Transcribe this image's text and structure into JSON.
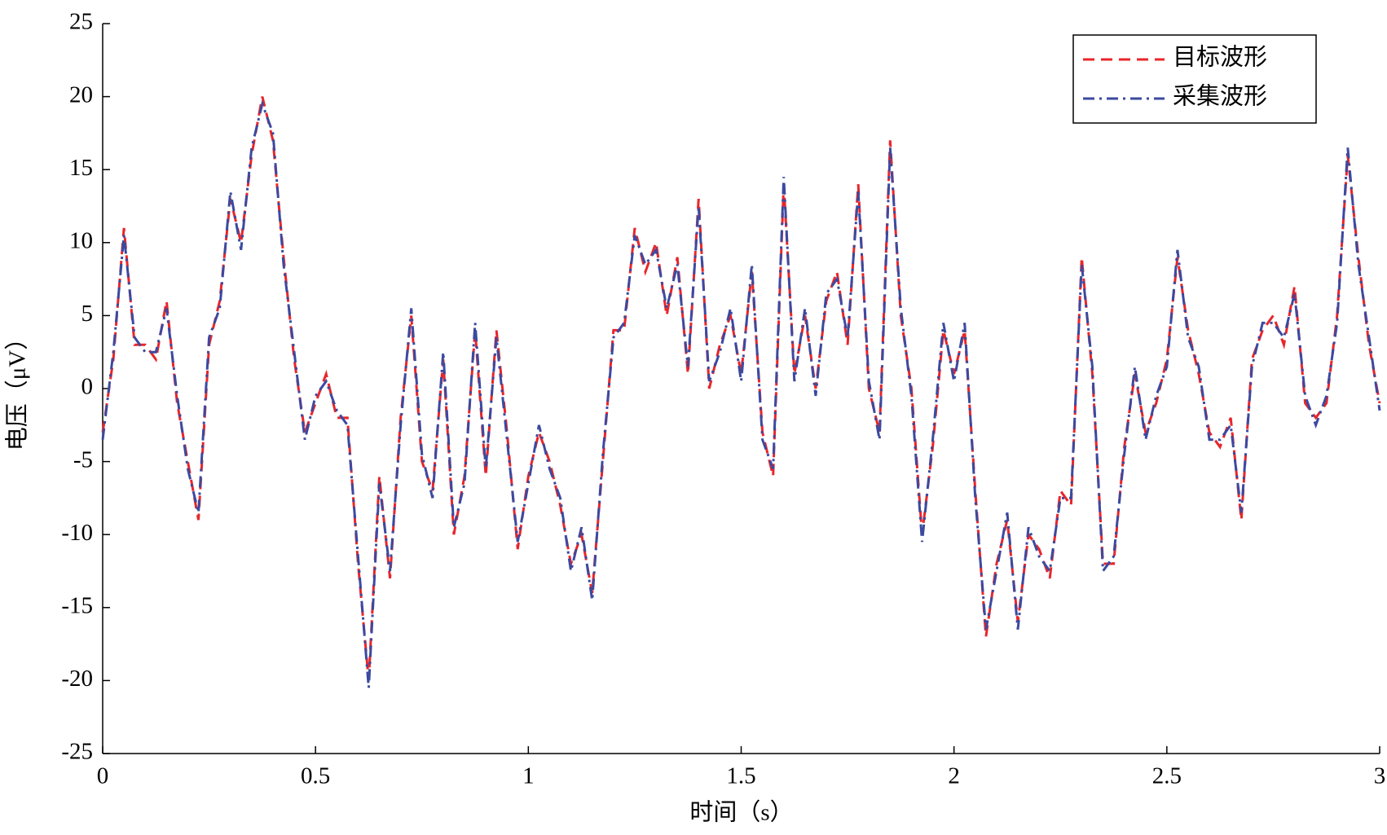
{
  "chart_data": {
    "type": "line",
    "xlabel": "时间（s）",
    "ylabel": "电压（μV）",
    "x": [
      0,
      0.025,
      0.05,
      0.075,
      0.1,
      0.125,
      0.15,
      0.175,
      0.2,
      0.225,
      0.25,
      0.275,
      0.3,
      0.325,
      0.35,
      0.375,
      0.4,
      0.425,
      0.45,
      0.475,
      0.5,
      0.525,
      0.55,
      0.575,
      0.6,
      0.625,
      0.65,
      0.675,
      0.7,
      0.725,
      0.75,
      0.775,
      0.8,
      0.825,
      0.85,
      0.875,
      0.9,
      0.925,
      0.95,
      0.975,
      1,
      1.025,
      1.05,
      1.075,
      1.1,
      1.125,
      1.15,
      1.175,
      1.2,
      1.225,
      1.25,
      1.275,
      1.3,
      1.325,
      1.35,
      1.375,
      1.4,
      1.425,
      1.45,
      1.475,
      1.5,
      1.525,
      1.55,
      1.575,
      1.6,
      1.625,
      1.65,
      1.675,
      1.7,
      1.725,
      1.75,
      1.775,
      1.8,
      1.825,
      1.85,
      1.875,
      1.9,
      1.925,
      1.95,
      1.975,
      2,
      2.025,
      2.05,
      2.075,
      2.1,
      2.125,
      2.15,
      2.175,
      2.2,
      2.225,
      2.25,
      2.275,
      2.3,
      2.325,
      2.35,
      2.375,
      2.4,
      2.425,
      2.45,
      2.475,
      2.5,
      2.525,
      2.55,
      2.575,
      2.6,
      2.625,
      2.65,
      2.675,
      2.7,
      2.725,
      2.75,
      2.775,
      2.8,
      2.825,
      2.85,
      2.875,
      2.9,
      2.925,
      2.95,
      2.975,
      3
    ],
    "series": [
      {
        "name": "目标波形",
        "color": "#e8262b",
        "dash": "dashed",
        "values": [
          -3,
          2,
          11,
          3,
          3,
          2,
          6,
          -1,
          -5,
          -9,
          3,
          6,
          13,
          10,
          16,
          20,
          17,
          9,
          2,
          -3,
          -1,
          1,
          -2,
          -2,
          -12,
          -20,
          -6,
          -13,
          -2,
          5,
          -5,
          -7,
          2,
          -10,
          -6,
          4,
          -6,
          4,
          -3,
          -11,
          -6,
          -3,
          -5,
          -8,
          -12,
          -10,
          -14,
          -5,
          4,
          4,
          11,
          8,
          10,
          5,
          9,
          1,
          13,
          0,
          3,
          5,
          1,
          8,
          -3,
          -6,
          14,
          1,
          5,
          0,
          6,
          8,
          3,
          14,
          0,
          -3,
          17,
          5,
          0,
          -10,
          -4,
          4,
          1,
          4,
          -7,
          -17,
          -12,
          -9,
          -16,
          -10,
          -11,
          -13,
          -7,
          -8,
          9,
          1,
          -12,
          -12,
          -4,
          1,
          -3,
          -1,
          2,
          9,
          4,
          1,
          -3,
          -4,
          -2,
          -9,
          2,
          4,
          5,
          3,
          7,
          -1,
          -2,
          -1,
          5,
          16,
          9,
          3,
          -1
        ]
      },
      {
        "name": "采集波形",
        "color": "#3b4aa0",
        "dash": "dashdot",
        "values": [
          -3.5,
          2.5,
          10.5,
          3.5,
          2.5,
          2.5,
          5.5,
          -0.5,
          -5.5,
          -8.5,
          3.5,
          5.5,
          13.5,
          9.5,
          16.5,
          19.5,
          17.5,
          8.5,
          2.5,
          -3.5,
          -0.5,
          0.5,
          -1.5,
          -2.5,
          -11.5,
          -20.5,
          -6.5,
          -12.5,
          -2.5,
          5.5,
          -4.5,
          -7.5,
          2.5,
          -9.5,
          -6.5,
          4.5,
          -5.5,
          3.5,
          -3.5,
          -10.5,
          -6.5,
          -2.5,
          -5.5,
          -7.5,
          -12.5,
          -9.5,
          -14.5,
          -4.5,
          3.5,
          4.5,
          10.5,
          8.5,
          9.5,
          5.5,
          8.5,
          1.5,
          12.5,
          0.5,
          2.5,
          5.5,
          0.5,
          8.5,
          -3.5,
          -5.5,
          14.5,
          0.5,
          5.5,
          -0.5,
          6.5,
          7.5,
          3.5,
          13.5,
          0.5,
          -3.5,
          16.5,
          5.5,
          -0.5,
          -10.5,
          -3.5,
          4.5,
          0.5,
          4.5,
          -7.5,
          -16.5,
          -12.5,
          -8.5,
          -16.5,
          -9.5,
          -11.5,
          -12.5,
          -7.5,
          -7.5,
          8.5,
          1.5,
          -12.5,
          -11.5,
          -4.5,
          1.5,
          -3.5,
          -0.5,
          1.5,
          9.5,
          3.5,
          1.5,
          -3.5,
          -3.5,
          -2.5,
          -8.5,
          1.5,
          4.5,
          4.5,
          3.5,
          6.5,
          -0.5,
          -2.5,
          -0.5,
          4.5,
          16.5,
          8.5,
          3.5,
          -1.5
        ]
      }
    ],
    "xlim": [
      0,
      3
    ],
    "xticks": [
      0,
      0.5,
      1,
      1.5,
      2,
      2.5,
      3
    ],
    "ylim": [
      -25,
      25
    ],
    "yticks": [
      -25,
      -20,
      -15,
      -10,
      -5,
      0,
      5,
      10,
      15,
      20,
      25
    ],
    "legend": "upper right",
    "grid": false
  }
}
